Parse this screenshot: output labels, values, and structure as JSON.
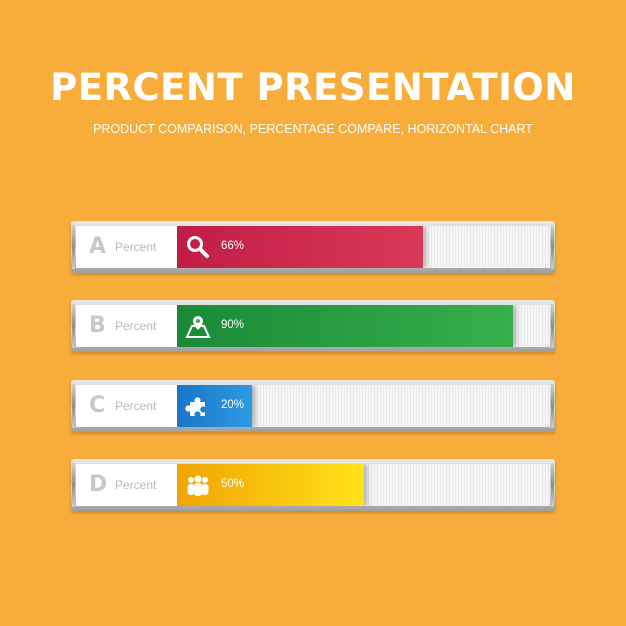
{
  "title": "PERCENT PRESENTATION",
  "subtitle": "PRODUCT COMPARISON, PERCENTAGE COMPARE, HORIZONTAL CHART",
  "chart_data": {
    "type": "bar",
    "orientation": "horizontal",
    "title": "PERCENT PRESENTATION",
    "subtitle": "PRODUCT COMPARISON, PERCENTAGE COMPARE, HORIZONTAL CHART",
    "categories": [
      "A",
      "B",
      "C",
      "D"
    ],
    "values": [
      66,
      90,
      20,
      50
    ],
    "value_labels": [
      "66%",
      "90%",
      "20%",
      "50%"
    ],
    "row_caption": "Percent",
    "xlim": [
      0,
      100
    ],
    "grid": false,
    "legend": "none",
    "colors": [
      [
        "#c01d45",
        "#d83a58"
      ],
      [
        "#1a8a37",
        "#36b04b"
      ],
      [
        "#1a75c9",
        "#2e9ae0"
      ],
      [
        "#f2a300",
        "#ffe21a"
      ]
    ],
    "icons": [
      "magnifier-icon",
      "map-pin-icon",
      "puzzle-piece-icon",
      "people-icon"
    ]
  }
}
